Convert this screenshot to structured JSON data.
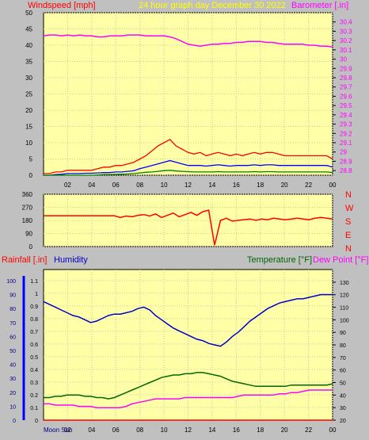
{
  "header": {
    "left_label": "Windspeed [mph]",
    "center_label": "24 hour graph day   December 30 2022",
    "right_label": "Barometer [.in]"
  },
  "wind_direction_labels": [
    "N",
    "W",
    "S",
    "E",
    "N"
  ],
  "bottom_header": {
    "rainfall_label": "Rainfall [.in]",
    "humidity_label": "Humidity",
    "temperature_label": "Temperature [°F]",
    "dewpoint_label": "Dew Point [°F]"
  },
  "footer": {
    "moon_label": "Moon Sun"
  },
  "colors": {
    "plot_bg": "#ffffa8",
    "window_bg": "#c0c0c0",
    "wind_gust": "#ff0000",
    "wind_avg": "#0000ff",
    "wind_low": "#008000",
    "barometer": "#ff00ff",
    "direction": "#ff0000",
    "rainfall": "#ff0000",
    "humidity": "#0000cc",
    "temperature": "#006600",
    "dewpoint": "#ff00ff"
  },
  "chart_data": [
    {
      "type": "line",
      "x_tick_labels": [
        "02",
        "04",
        "06",
        "08",
        "10",
        "12",
        "14",
        "16",
        "18",
        "20",
        "22",
        "00"
      ],
      "y_left_ticks": [
        "0",
        "5",
        "10",
        "15",
        "20",
        "25",
        "30",
        "35",
        "40",
        "45",
        "50"
      ],
      "y_right_ticks": [
        "28.8",
        "28.9",
        "29",
        "29.1",
        "29.2",
        "29.3",
        "29.4",
        "29.5",
        "29.6",
        "29.7",
        "29.8",
        "29.9",
        "30",
        "30.1",
        "30.2",
        "30.3",
        "30.4"
      ],
      "y_left_range": [
        0,
        50
      ],
      "y_right_range": [
        28.75,
        30.5
      ],
      "series": [
        {
          "values": [
            0.5,
            0.5,
            1,
            1,
            1.5,
            1.5,
            1.5,
            1.5,
            1.5,
            2,
            2.5,
            2.5,
            3,
            3,
            3.5,
            4,
            5,
            6,
            7.5,
            9,
            10,
            11,
            9,
            8,
            7,
            6.5,
            7,
            6,
            6.5,
            7,
            6.5,
            6,
            6.5,
            6,
            6.5,
            7,
            6.5,
            7,
            7,
            6.5,
            6,
            6,
            6,
            6,
            6,
            6,
            6,
            6,
            5
          ]
        },
        {
          "values": [
            0,
            0,
            0.2,
            0.3,
            0.5,
            0.5,
            0.5,
            0.6,
            0.6,
            0.7,
            0.8,
            0.8,
            1,
            1,
            1.2,
            1.4,
            2,
            2.5,
            3,
            3.5,
            4,
            4.5,
            4,
            3.5,
            3,
            3,
            3,
            2.8,
            3,
            3.2,
            3,
            2.8,
            3,
            3,
            3,
            3.2,
            3,
            3.2,
            3.2,
            3,
            3,
            3,
            3,
            3,
            3,
            3,
            3,
            3,
            2.5
          ]
        },
        {
          "values": [
            0,
            0,
            0,
            0,
            0,
            0,
            0,
            0,
            0,
            0.1,
            0.2,
            0.2,
            0.3,
            0.3,
            0.4,
            0.5,
            0.7,
            0.9,
            1,
            1.2,
            1.4,
            1.5,
            1.3,
            1.2,
            1.1,
            1,
            1,
            1,
            1,
            1.1,
            1,
            1,
            1,
            1,
            1,
            1.1,
            1,
            1.1,
            1.1,
            1,
            1,
            1,
            1,
            1,
            1,
            1,
            1,
            1,
            0.8
          ]
        },
        {
          "values": [
            30.25,
            30.26,
            30.26,
            30.25,
            30.26,
            30.25,
            30.26,
            30.25,
            30.25,
            30.24,
            30.24,
            30.25,
            30.25,
            30.25,
            30.26,
            30.26,
            30.26,
            30.25,
            30.25,
            30.25,
            30.25,
            30.24,
            30.22,
            30.19,
            30.16,
            30.15,
            30.14,
            30.15,
            30.16,
            30.16,
            30.17,
            30.17,
            30.18,
            30.18,
            30.19,
            30.19,
            30.19,
            30.18,
            30.18,
            30.17,
            30.16,
            30.16,
            30.16,
            30.16,
            30.15,
            30.15,
            30.14,
            30.14,
            30.13
          ]
        }
      ]
    },
    {
      "type": "line",
      "y_ticks": [
        "360",
        "270",
        "180",
        "90",
        "0"
      ],
      "y_range": [
        0,
        360
      ],
      "series": [
        {
          "values": [
            212,
            212,
            212,
            212,
            212,
            212,
            212,
            212,
            212,
            212,
            212,
            212,
            212,
            200,
            210,
            205,
            215,
            220,
            210,
            225,
            200,
            215,
            230,
            205,
            220,
            235,
            215,
            240,
            250,
            10,
            180,
            195,
            175,
            180,
            185,
            190,
            180,
            190,
            185,
            195,
            190,
            185,
            190,
            195,
            190,
            185,
            195,
            200,
            195,
            190
          ]
        }
      ]
    },
    {
      "type": "line",
      "x_tick_labels": [
        "02",
        "04",
        "06",
        "08",
        "10",
        "12",
        "14",
        "16",
        "18",
        "20",
        "22",
        "00"
      ],
      "y_left_ticks": [
        "0",
        "10",
        "20",
        "30",
        "40",
        "50",
        "60",
        "70",
        "80",
        "90",
        "100"
      ],
      "y_rain_ticks": [
        "0",
        "0.1",
        "0.2",
        "0.3",
        "0.4",
        "0.5",
        "0.6",
        "0.7",
        "0.8",
        "0.9",
        "1",
        "1.1"
      ],
      "y_right_ticks": [
        "20",
        "30",
        "40",
        "50",
        "60",
        "70",
        "80",
        "90",
        "100",
        "110",
        "120",
        "130"
      ],
      "y_left_range": [
        0,
        100
      ],
      "y_right_range": [
        20,
        135
      ],
      "series": [
        {
          "values": [
            85,
            83,
            81,
            79,
            77,
            75,
            74,
            72,
            70,
            71,
            73,
            75,
            76,
            76,
            77,
            78,
            80,
            81,
            79,
            75,
            72,
            69,
            66,
            64,
            62,
            60,
            58,
            57,
            55,
            54,
            53,
            56,
            60,
            63,
            67,
            71,
            74,
            77,
            80,
            82,
            84,
            85,
            86,
            87,
            87,
            88,
            89,
            90,
            90,
            90
          ]
        },
        {
          "values": [
            38,
            38,
            39,
            39,
            40,
            40,
            40,
            39,
            39,
            38,
            38,
            37,
            38,
            40,
            42,
            44,
            46,
            48,
            50,
            52,
            54,
            55,
            56,
            56,
            57,
            57,
            58,
            58,
            57,
            56,
            55,
            53,
            51,
            50,
            49,
            48,
            47,
            47,
            47,
            47,
            47,
            47,
            48,
            48,
            48,
            48,
            48,
            48,
            48,
            49
          ]
        },
        {
          "values": [
            33,
            33,
            32,
            32,
            32,
            32,
            31,
            31,
            31,
            30,
            30,
            30,
            30,
            30,
            31,
            33,
            34,
            35,
            36,
            37,
            37,
            37,
            37,
            37,
            38,
            38,
            38,
            38,
            38,
            38,
            38,
            38,
            38,
            39,
            40,
            40,
            40,
            40,
            40,
            40,
            41,
            41,
            42,
            42,
            43,
            44,
            44,
            44,
            44,
            44
          ]
        },
        {
          "values": [
            0,
            0,
            0,
            0,
            0,
            0,
            0,
            0,
            0,
            0,
            0,
            0,
            0,
            0,
            0,
            0,
            0,
            0,
            0,
            0,
            0,
            0,
            0,
            0,
            0,
            0,
            0,
            0,
            0,
            0,
            0,
            0,
            0,
            0,
            0,
            0,
            0,
            0,
            0,
            0,
            0,
            0,
            0,
            0,
            0,
            0,
            0,
            0,
            0,
            0
          ]
        }
      ]
    }
  ]
}
